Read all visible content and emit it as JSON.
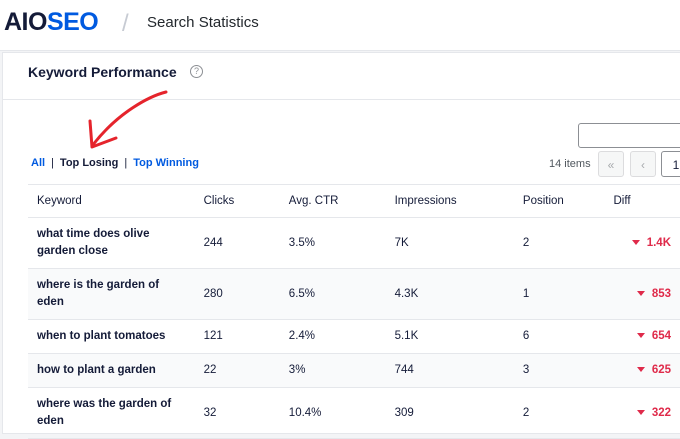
{
  "header": {
    "logo": {
      "prefix": "AIO",
      "suffix": "SEO"
    },
    "title": "Search Statistics"
  },
  "card": {
    "title": "Keyword Performance",
    "filters": [
      "All",
      "Top Losing",
      "Top Winning"
    ],
    "item_count": "14 items",
    "pagination": [
      "«",
      "‹",
      "1"
    ],
    "table": {
      "columns": [
        "Keyword",
        "Clicks",
        "Avg. CTR",
        "Impressions",
        "Position",
        "Diff"
      ],
      "rows": [
        [
          "what time does olive garden close",
          "244",
          "3.5%",
          "7K",
          "2",
          "1.4K"
        ],
        [
          "where is the garden of eden",
          "280",
          "6.5%",
          "4.3K",
          "1",
          "853"
        ],
        [
          "when to plant tomatoes",
          "121",
          "2.4%",
          "5.1K",
          "6",
          "654"
        ],
        [
          "how to plant a garden",
          "22",
          "3%",
          "744",
          "3",
          "625"
        ],
        [
          "where was the garden of eden",
          "32",
          "10.4%",
          "309",
          "2",
          "322"
        ]
      ]
    }
  }
}
